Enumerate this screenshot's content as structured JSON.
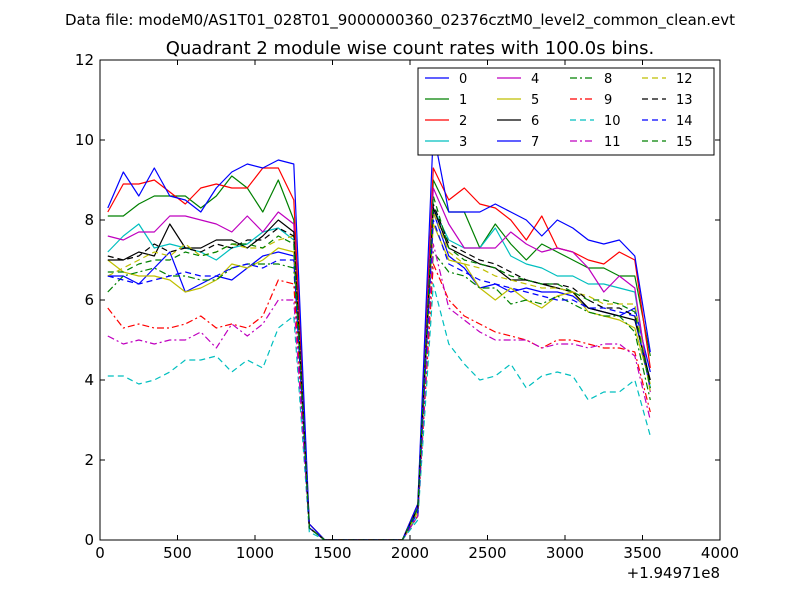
{
  "header": {
    "suptitle": "Data file: modeM0/AS1T01_028T01_9000000360_02376cztM0_level2_common_clean.evt"
  },
  "chart_data": {
    "type": "line",
    "title": "Quadrant 2 module wise count rates with 100.0s bins.",
    "xlabel": "",
    "ylabel": "",
    "x_offset_label": "+1.94971e8",
    "xlim": [
      0,
      4000
    ],
    "ylim": [
      0,
      12
    ],
    "xticks": [
      "0",
      "500",
      "1000",
      "1500",
      "2000",
      "2500",
      "3000",
      "3500",
      "4000"
    ],
    "yticks": [
      "0",
      "2",
      "4",
      "6",
      "8",
      "10",
      "12"
    ],
    "grid": false,
    "legend_placement": "top-right",
    "x": [
      50,
      150,
      250,
      350,
      450,
      550,
      650,
      750,
      850,
      950,
      1050,
      1150,
      1250,
      1350,
      1450,
      1550,
      1650,
      1750,
      1850,
      1950,
      2050,
      2150,
      2250,
      2350,
      2450,
      2550,
      2650,
      2750,
      2850,
      2950,
      3050,
      3150,
      3250,
      3350,
      3450,
      3550
    ],
    "series": [
      {
        "name": "0",
        "color": "#0000ff",
        "dash": "solid",
        "values": [
          6.6,
          6.6,
          6.4,
          6.8,
          7.2,
          6.2,
          6.4,
          6.6,
          6.5,
          6.8,
          7.1,
          7.2,
          7.1,
          0.4,
          0.0,
          0.0,
          0.0,
          0.0,
          0.0,
          0.0,
          0.8,
          8.2,
          7.1,
          6.8,
          6.3,
          6.4,
          6.2,
          6.3,
          6.2,
          6.2,
          6.1,
          5.8,
          5.7,
          5.6,
          5.8,
          4.2
        ]
      },
      {
        "name": "1",
        "color": "#008000",
        "dash": "solid",
        "values": [
          8.1,
          8.1,
          8.4,
          8.6,
          8.6,
          8.6,
          8.3,
          8.6,
          9.1,
          8.8,
          8.2,
          9.0,
          8.0,
          0.4,
          0.0,
          0.0,
          0.0,
          0.0,
          0.0,
          0.0,
          0.8,
          9.0,
          8.2,
          8.2,
          7.3,
          7.9,
          7.4,
          7.0,
          7.4,
          7.2,
          7.0,
          6.8,
          6.8,
          6.6,
          6.6,
          4.6
        ]
      },
      {
        "name": "2",
        "color": "#ff0000",
        "dash": "solid",
        "values": [
          8.2,
          8.9,
          8.9,
          9.0,
          8.7,
          8.4,
          8.8,
          8.9,
          8.8,
          8.8,
          9.3,
          9.3,
          8.5,
          0.4,
          0.0,
          0.0,
          0.0,
          0.0,
          0.0,
          0.0,
          0.9,
          9.3,
          8.5,
          8.8,
          8.4,
          8.3,
          8.0,
          7.5,
          8.1,
          7.3,
          7.2,
          7.0,
          6.9,
          7.2,
          7.0,
          4.3
        ]
      },
      {
        "name": "3",
        "color": "#00bfbf",
        "dash": "solid",
        "values": [
          7.2,
          7.6,
          7.9,
          7.3,
          7.4,
          7.3,
          7.2,
          7.0,
          7.3,
          7.4,
          7.7,
          7.8,
          7.5,
          0.3,
          0.0,
          0.0,
          0.0,
          0.0,
          0.0,
          0.0,
          0.6,
          8.3,
          7.5,
          7.3,
          7.3,
          7.8,
          7.1,
          6.9,
          6.8,
          6.6,
          6.6,
          6.4,
          6.4,
          6.3,
          6.2,
          3.8
        ]
      },
      {
        "name": "4",
        "color": "#bf00bf",
        "dash": "solid",
        "values": [
          7.6,
          7.5,
          7.7,
          7.7,
          8.1,
          8.1,
          8.0,
          7.9,
          7.7,
          8.1,
          7.7,
          8.2,
          7.9,
          0.3,
          0.0,
          0.0,
          0.0,
          0.0,
          0.0,
          0.0,
          0.7,
          8.8,
          7.9,
          7.3,
          7.3,
          7.3,
          7.7,
          7.4,
          7.2,
          7.3,
          7.2,
          6.8,
          6.2,
          6.6,
          6.3,
          3.7
        ]
      },
      {
        "name": "5",
        "color": "#bfbf00",
        "dash": "solid",
        "values": [
          7.0,
          6.7,
          6.6,
          6.6,
          6.5,
          6.2,
          6.3,
          6.5,
          6.9,
          6.8,
          7.0,
          7.3,
          7.2,
          0.3,
          0.0,
          0.0,
          0.0,
          0.0,
          0.0,
          0.0,
          0.7,
          7.9,
          7.0,
          6.9,
          6.3,
          6.0,
          6.3,
          6.0,
          5.8,
          6.1,
          6.2,
          5.7,
          5.6,
          5.5,
          5.3,
          3.9
        ]
      },
      {
        "name": "6",
        "color": "#000000",
        "dash": "solid",
        "values": [
          7.0,
          7.0,
          7.2,
          7.1,
          7.9,
          7.3,
          7.3,
          7.5,
          7.5,
          7.3,
          7.6,
          8.0,
          7.7,
          0.3,
          0.0,
          0.0,
          0.0,
          0.0,
          0.0,
          0.0,
          0.8,
          8.3,
          7.3,
          7.1,
          6.9,
          6.8,
          6.5,
          6.5,
          6.4,
          6.3,
          6.2,
          5.8,
          5.7,
          5.6,
          5.5,
          4.0
        ]
      },
      {
        "name": "7",
        "color": "#0000ff",
        "dash": "solid",
        "values": [
          8.3,
          9.2,
          8.6,
          9.3,
          8.6,
          8.5,
          8.2,
          8.8,
          9.2,
          9.4,
          9.3,
          9.5,
          9.4,
          0.4,
          0.0,
          0.0,
          0.0,
          0.0,
          0.0,
          0.0,
          0.9,
          10.2,
          8.2,
          8.2,
          8.2,
          8.4,
          8.2,
          8.0,
          7.6,
          8.0,
          7.8,
          7.5,
          7.4,
          7.5,
          7.1,
          4.7
        ]
      },
      {
        "name": "8",
        "color": "#008000",
        "dash": "dashdot",
        "values": [
          6.2,
          6.6,
          6.7,
          6.8,
          6.6,
          6.6,
          6.5,
          6.5,
          6.8,
          6.9,
          6.9,
          6.9,
          6.8,
          0.3,
          0.0,
          0.0,
          0.0,
          0.0,
          0.0,
          0.0,
          0.7,
          7.2,
          6.7,
          6.6,
          6.3,
          6.3,
          5.9,
          6.0,
          5.9,
          6.1,
          5.9,
          5.7,
          5.6,
          5.6,
          5.2,
          3.5
        ]
      },
      {
        "name": "9",
        "color": "#ff0000",
        "dash": "dashdot",
        "values": [
          5.8,
          5.3,
          5.4,
          5.3,
          5.3,
          5.4,
          5.6,
          5.3,
          5.4,
          5.3,
          5.6,
          6.5,
          6.4,
          0.3,
          0.0,
          0.0,
          0.0,
          0.0,
          0.0,
          0.0,
          0.6,
          6.9,
          6.0,
          5.6,
          5.4,
          5.2,
          5.1,
          5.0,
          4.8,
          5.0,
          5.0,
          4.9,
          4.8,
          4.8,
          4.7,
          3.2
        ]
      },
      {
        "name": "10",
        "color": "#00bfbf",
        "dash": "dashed",
        "values": [
          4.1,
          4.1,
          3.9,
          4.0,
          4.2,
          4.5,
          4.5,
          4.6,
          4.2,
          4.5,
          4.3,
          5.3,
          5.6,
          0.2,
          0.0,
          0.0,
          0.0,
          0.0,
          0.0,
          0.0,
          0.5,
          6.4,
          4.9,
          4.4,
          4.0,
          4.1,
          4.4,
          3.8,
          4.1,
          4.2,
          4.1,
          3.5,
          3.7,
          3.7,
          4.0,
          2.6
        ]
      },
      {
        "name": "11",
        "color": "#bf00bf",
        "dash": "dashdot",
        "values": [
          5.1,
          4.9,
          5.0,
          4.9,
          5.0,
          5.0,
          5.2,
          4.8,
          5.4,
          5.1,
          5.4,
          6.0,
          6.0,
          0.3,
          0.0,
          0.0,
          0.0,
          0.0,
          0.0,
          0.0,
          0.6,
          7.4,
          5.8,
          5.5,
          5.2,
          5.0,
          5.0,
          5.0,
          4.8,
          4.9,
          4.9,
          4.8,
          4.9,
          4.9,
          4.6,
          3.0
        ]
      },
      {
        "name": "12",
        "color": "#bfbf00",
        "dash": "dashed",
        "values": [
          6.6,
          6.8,
          7.0,
          7.2,
          7.1,
          7.4,
          7.1,
          7.2,
          7.4,
          7.3,
          7.3,
          7.5,
          7.6,
          0.3,
          0.0,
          0.0,
          0.0,
          0.0,
          0.0,
          0.0,
          0.7,
          8.2,
          7.2,
          6.9,
          6.8,
          6.6,
          6.5,
          6.4,
          6.3,
          6.3,
          6.2,
          6.1,
          5.9,
          5.9,
          5.9,
          3.7
        ]
      },
      {
        "name": "13",
        "color": "#000000",
        "dash": "dashed",
        "values": [
          7.1,
          7.0,
          7.1,
          7.4,
          7.2,
          7.3,
          7.2,
          7.4,
          7.3,
          7.5,
          7.5,
          7.8,
          7.6,
          0.3,
          0.0,
          0.0,
          0.0,
          0.0,
          0.0,
          0.0,
          0.8,
          8.4,
          7.4,
          7.2,
          7.0,
          6.9,
          6.7,
          6.5,
          6.4,
          6.4,
          6.3,
          6.0,
          5.8,
          5.8,
          5.6,
          3.9
        ]
      },
      {
        "name": "14",
        "color": "#0000ff",
        "dash": "dashed",
        "values": [
          6.6,
          6.5,
          6.4,
          6.5,
          6.6,
          6.7,
          6.6,
          6.6,
          6.8,
          6.9,
          6.8,
          7.0,
          7.0,
          0.3,
          0.0,
          0.0,
          0.0,
          0.0,
          0.0,
          0.0,
          0.7,
          8.0,
          6.9,
          6.7,
          6.5,
          6.4,
          6.3,
          6.2,
          6.1,
          6.0,
          6.0,
          5.8,
          5.8,
          5.7,
          5.6,
          3.8
        ]
      },
      {
        "name": "15",
        "color": "#008000",
        "dash": "dashed",
        "values": [
          6.7,
          6.7,
          6.9,
          7.0,
          7.0,
          7.2,
          7.1,
          7.2,
          7.4,
          7.4,
          7.3,
          7.6,
          7.4,
          0.3,
          0.0,
          0.0,
          0.0,
          0.0,
          0.0,
          0.0,
          0.8,
          8.6,
          7.3,
          7.0,
          6.9,
          6.8,
          6.6,
          6.5,
          6.4,
          6.4,
          6.2,
          6.0,
          6.0,
          5.9,
          5.7,
          3.8
        ]
      }
    ]
  }
}
